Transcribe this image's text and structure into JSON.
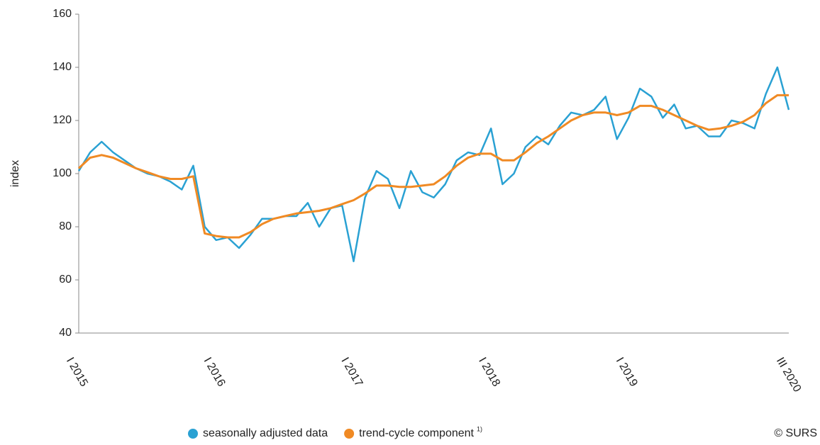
{
  "chart_data": {
    "type": "line",
    "y_label": "index",
    "source": "© SURS",
    "legend_note": "1)",
    "categories": [
      "I 2015",
      null,
      null,
      null,
      null,
      null,
      null,
      null,
      null,
      null,
      null,
      null,
      "I 2016",
      null,
      null,
      null,
      null,
      null,
      null,
      null,
      null,
      null,
      null,
      null,
      "I 2017",
      null,
      null,
      null,
      null,
      null,
      null,
      null,
      null,
      null,
      null,
      null,
      "I 2018",
      null,
      null,
      null,
      null,
      null,
      null,
      null,
      null,
      null,
      null,
      null,
      "I 2019",
      null,
      null,
      null,
      null,
      null,
      null,
      null,
      null,
      null,
      null,
      null,
      null,
      null,
      "III 2020"
    ],
    "series": [
      {
        "name": "seasonally adjusted data",
        "color": "#2aa1d3",
        "values": [
          101,
          108,
          112,
          108,
          105,
          102,
          100,
          99,
          97,
          94,
          103,
          80,
          75,
          76,
          72,
          77,
          83,
          83,
          84,
          84,
          89,
          80,
          87,
          88,
          67,
          91,
          101,
          98,
          87,
          101,
          93,
          91,
          96,
          105,
          108,
          107,
          117,
          96,
          100,
          110,
          114,
          111,
          118,
          123,
          122,
          124,
          129,
          113,
          121,
          132,
          129,
          121,
          126,
          117,
          118,
          114,
          114,
          120,
          119,
          117,
          130,
          140,
          124
        ]
      },
      {
        "name": "trend-cycle component",
        "color": "#f08a24",
        "values": [
          102,
          106,
          107,
          106,
          104,
          102,
          100.5,
          99,
          98,
          98,
          99,
          77.5,
          76.5,
          76,
          76,
          78,
          81,
          83,
          84,
          85,
          85.5,
          86,
          87,
          88.5,
          90,
          92.5,
          95.5,
          95.5,
          95,
          95,
          95.5,
          96,
          99,
          103,
          106,
          107.5,
          107.5,
          105,
          105,
          108,
          111.5,
          114,
          117,
          120,
          122,
          123,
          123,
          122,
          123,
          125.5,
          125.5,
          124,
          122,
          120,
          118,
          116.5,
          117,
          118,
          119.5,
          122,
          126.5,
          129.5,
          129.5
        ]
      }
    ],
    "ylim": [
      40,
      160
    ],
    "yticks": [
      40,
      60,
      80,
      100,
      120,
      140,
      160
    ],
    "grid": false
  }
}
